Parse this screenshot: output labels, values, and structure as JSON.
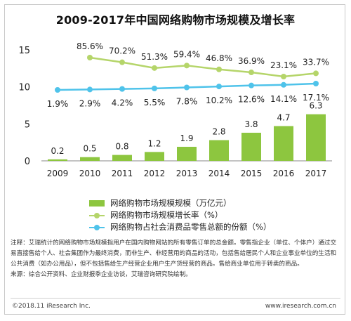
{
  "chart_data": {
    "type": "bar",
    "title": "2009-2017年中国网络购物市场规模及增长率",
    "categories": [
      "2009",
      "2010",
      "2011",
      "2012",
      "2013",
      "2014",
      "2015",
      "2016",
      "2017"
    ],
    "y_ticks": [
      "0",
      "5",
      "10",
      "15"
    ],
    "ylim": [
      0,
      15
    ],
    "series": [
      {
        "name": "网络购物市场规模规模（万亿元）",
        "type": "bar",
        "values": [
          0.2,
          0.5,
          0.8,
          1.2,
          1.9,
          2.8,
          3.8,
          4.7,
          6.3
        ],
        "labels": [
          "0.2",
          "0.5",
          "0.8",
          "1.2",
          "1.9",
          "2.8",
          "3.8",
          "4.7",
          "6.3"
        ],
        "color": "#8dc63f"
      },
      {
        "name": "网络购物市场规模增长率（%）",
        "type": "line",
        "values": [
          null,
          85.6,
          70.2,
          51.3,
          59.4,
          46.8,
          36.9,
          23.1,
          33.7
        ],
        "labels": [
          "",
          "85.6%",
          "70.2%",
          "51.3%",
          "59.4%",
          "46.8%",
          "36.9%",
          "23.1%",
          "33.7%"
        ],
        "color": "#b5d56a"
      },
      {
        "name": "网络购物占社会消费品零售总额的份额（%）",
        "type": "line",
        "values": [
          1.9,
          2.9,
          4.2,
          5.5,
          7.8,
          10.2,
          12.6,
          14.1,
          17.1
        ],
        "labels": [
          "1.9%",
          "2.9%",
          "4.2%",
          "5.5%",
          "7.8%",
          "10.2%",
          "12.6%",
          "14.1%",
          "17.1%"
        ],
        "color": "#4fc3ea"
      }
    ],
    "grid": false,
    "legend_position": "bottom"
  },
  "notes": {
    "line1": "注释：艾瑞统计的网络购物市场规模指用户在国内购物网站的所有零售订单的总金额。零售指企业（单位、个体户）通过交易直接售给个人、社会集团作为最终消费，而非生产、非经营用的商品的活动，包括售给居民个人和企业事业单位的生活和公共消费（如办公用品），但不包括售给生产经营企业用户生产货经营的商品。售给商业单位用于转卖的商品。",
    "line2": "来源：综合公开资料、企业财报季企业访谈，艾瑞咨询研究院绘制。"
  },
  "footer": {
    "copyright": "©2018.11 iResearch Inc.",
    "website": "www.iresearch.com.cn"
  }
}
